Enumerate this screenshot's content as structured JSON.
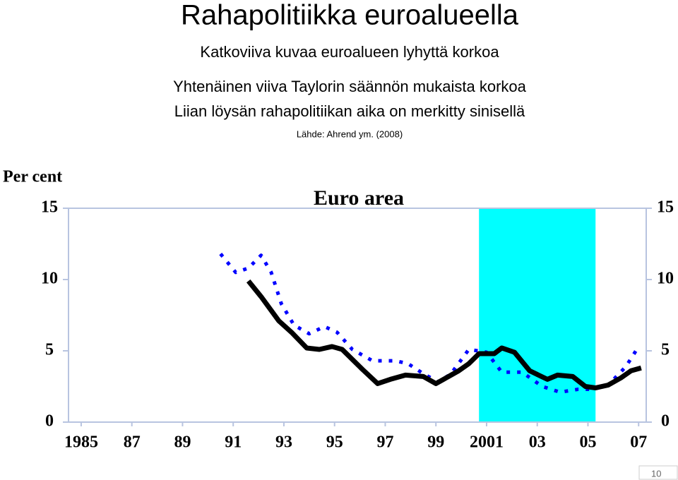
{
  "slide": {
    "title": "Rahapolitiikka euroalueella",
    "lines": [
      "Katkoviiva kuvaa euroalueen lyhyttä korkoa",
      "Yhtenäinen viiva Taylorin säännön mukaista korkoa",
      "Liian löysän rahapolitiikan aika on merkitty sinisellä"
    ],
    "source": "Lähde: Ahrend ym. (2008)",
    "page": "10"
  },
  "chart_data": {
    "type": "line",
    "title": "Euro area",
    "ylabel": "Per cent",
    "xlim": [
      1984.5,
      2007.3
    ],
    "ylim": [
      0,
      15
    ],
    "xticks": [
      1985,
      {
        "value": 1987,
        "label": "87"
      },
      {
        "value": 1989,
        "label": "89"
      },
      {
        "value": 1991,
        "label": "91"
      },
      {
        "value": 1993,
        "label": "93"
      },
      {
        "value": 1995,
        "label": "95"
      },
      {
        "value": 1997,
        "label": "97"
      },
      {
        "value": 1999,
        "label": "99"
      },
      2001,
      {
        "value": 2003,
        "label": "03"
      },
      {
        "value": 2005,
        "label": "05"
      },
      {
        "value": 2007,
        "label": "07"
      }
    ],
    "yticks": [
      0,
      5,
      10,
      15
    ],
    "y2ticks": [
      0,
      5,
      10,
      15
    ],
    "highlight": {
      "x": [
        2000.7,
        2005.3
      ],
      "color": "#00ffff"
    },
    "grid": false,
    "series": [
      {
        "color": "#0000ff",
        "style": "dotted",
        "x": [
          1990.5,
          1991.1,
          1991.6,
          1992.1,
          1992.5,
          1992.9,
          1993.4,
          1994.0,
          1994.6,
          1995.1,
          1995.7,
          1996.5,
          1997.4,
          1997.9,
          1998.5,
          1999.1,
          1999.6,
          2000.3,
          2001.0,
          2001.6,
          2002.4,
          2003.2,
          2003.9,
          2004.6,
          2005.2,
          2005.8,
          2006.5,
          2007.0
        ],
        "values": [
          11.8,
          10.5,
          10.8,
          11.7,
          10.5,
          8.3,
          6.8,
          6.2,
          6.7,
          6.3,
          5.1,
          4.3,
          4.3,
          4.1,
          3.4,
          2.8,
          3.4,
          5.1,
          4.9,
          3.5,
          3.5,
          2.5,
          2.1,
          2.3,
          2.3,
          2.6,
          3.9,
          5.3
        ]
      },
      {
        "color": "#000000",
        "style": "solid",
        "x": [
          1991.6,
          1992.1,
          1992.8,
          1993.3,
          1993.9,
          1994.4,
          1994.9,
          1995.3,
          1995.7,
          1996.1,
          1996.7,
          1997.2,
          1997.8,
          1998.5,
          1999.0,
          1999.3,
          1999.9,
          2000.3,
          2000.7,
          2001.3,
          2001.6,
          2002.1,
          2002.7,
          2003.4,
          2003.8,
          2004.4,
          2004.9,
          2005.3,
          2005.8,
          2006.3,
          2006.7,
          2007.1
        ],
        "values": [
          9.9,
          8.8,
          7.1,
          6.3,
          5.2,
          5.1,
          5.3,
          5.1,
          4.4,
          3.7,
          2.7,
          3.0,
          3.3,
          3.2,
          2.7,
          3.0,
          3.6,
          4.1,
          4.8,
          4.8,
          5.2,
          4.9,
          3.6,
          3.0,
          3.3,
          3.2,
          2.5,
          2.4,
          2.6,
          3.1,
          3.6,
          3.8
        ]
      }
    ]
  }
}
